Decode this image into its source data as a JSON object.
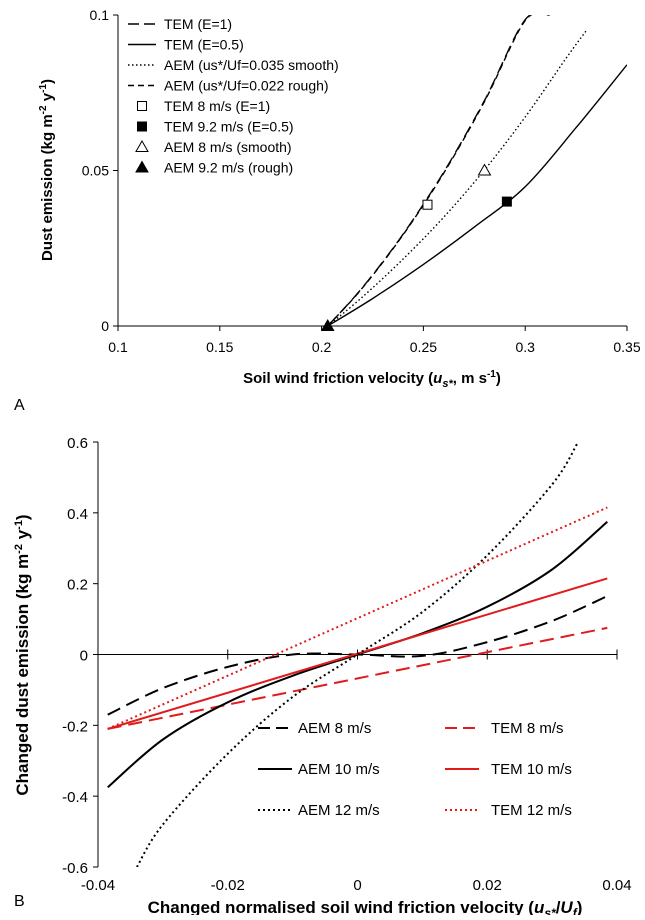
{
  "charts": [
    {
      "panel_label": "A",
      "type": "line",
      "xlabel_prefix": "Soil wind friction velocity (",
      "xlabel_var": "u",
      "xlabel_sub": "s*",
      "xlabel_suffix": ", m s",
      "xlabel_sup": "-1",
      "xlabel_end": ")",
      "ylabel": "Dust emission (kg m-2 y-1)",
      "ylabel_parts": [
        "Dust emission (kg m",
        "-2",
        " y",
        "-1",
        ")"
      ],
      "xlim": [
        0.1,
        0.35
      ],
      "ylim": [
        0,
        0.1
      ],
      "xticks": [
        0.1,
        0.15,
        0.2,
        0.25,
        0.3,
        0.35
      ],
      "xtick_labels": [
        "0.1",
        "0.15",
        "0.2",
        "0.25",
        "0.3",
        "0.35"
      ],
      "yticks": [
        0,
        0.05,
        0.1
      ],
      "ytick_labels": [
        "0",
        "0.05",
        "0.1"
      ],
      "legend_position": "top-left",
      "series": [
        {
          "name": "TEM (E=1)",
          "style": "longdash",
          "color": "#000000",
          "x": [
            0.203,
            0.22,
            0.24,
            0.26,
            0.28,
            0.3,
            0.313
          ],
          "y": [
            0.0,
            0.0123,
            0.0295,
            0.0495,
            0.0725,
            0.0985,
            0.1
          ]
        },
        {
          "name": "TEM (E=0.5)",
          "style": "solid",
          "color": "#000000",
          "x": [
            0.203,
            0.225,
            0.25,
            0.275,
            0.3,
            0.325,
            0.35
          ],
          "y": [
            0.0,
            0.0088,
            0.0198,
            0.0318,
            0.0448,
            0.0638,
            0.084
          ]
        },
        {
          "name": "AEM (us*/Uf=0.035 smooth)",
          "style": "dotted",
          "color": "#000000",
          "x": [
            0.203,
            0.22,
            0.24,
            0.26,
            0.28,
            0.3,
            0.32,
            0.33
          ],
          "y": [
            0.0,
            0.0093,
            0.0215,
            0.035,
            0.0502,
            0.0672,
            0.086,
            0.095
          ]
        },
        {
          "name": "AEM (us*/Uf=0.022 rough)",
          "style": "shortdash",
          "color": "#000000",
          "x": [
            0.203,
            0.22,
            0.24,
            0.26,
            0.28,
            0.3,
            0.312
          ],
          "y": [
            0.0,
            0.0122,
            0.0293,
            0.0492,
            0.0722,
            0.0982,
            0.1
          ]
        }
      ],
      "markers": [
        {
          "name": "TEM 8 m/s (E=1)",
          "symbol": "square-open",
          "x": 0.252,
          "y": 0.039
        },
        {
          "name": "TEM 9.2 m/s (E=0.5)",
          "symbol": "square-filled",
          "x": 0.291,
          "y": 0.04
        },
        {
          "name": "AEM 8 m/s (smooth)",
          "symbol": "triangle-open",
          "x": 0.28,
          "y": 0.05
        },
        {
          "name": "AEM 9.2 m/s (rough)",
          "symbol": "triangle-filled",
          "x": 0.203,
          "y": 0.0
        }
      ]
    },
    {
      "panel_label": "B",
      "type": "line",
      "xlabel_prefix": "Changed normalised soil wind friction velocity (",
      "xlabel_var": "u",
      "xlabel_sub": "s*",
      "xlabel_mid": "/",
      "xlabel_var2": "U",
      "xlabel_sub2": "f",
      "xlabel_end": ")",
      "ylabel": "Changed dust emission (kg m-2 y-1)",
      "ylabel_parts": [
        "Changed dust emission (kg m",
        "-2",
        " y",
        "-1",
        ")"
      ],
      "xlim": [
        -0.04,
        0.04
      ],
      "ylim": [
        -0.6,
        0.6
      ],
      "xticks": [
        -0.04,
        -0.02,
        0,
        0.02,
        0.04
      ],
      "xtick_labels": [
        "-0.04",
        "-0.02",
        "0",
        "0.02",
        "0.04"
      ],
      "yticks": [
        -0.6,
        -0.4,
        -0.2,
        0,
        0.2,
        0.4,
        0.6
      ],
      "ytick_labels": [
        "-0.6",
        "-0.4",
        "-0.2",
        "0",
        "0.2",
        "0.4",
        "0.6"
      ],
      "legend_position": "bottom-right",
      "series": [
        {
          "name": "AEM 8 m/s",
          "style": "longdash",
          "color": "#000000",
          "x": [
            -0.0385,
            -0.03,
            -0.02,
            -0.01,
            0,
            0.01,
            0.02,
            0.03,
            0.0385
          ],
          "y": [
            -0.17,
            -0.095,
            -0.035,
            0.0,
            0.0,
            -0.004,
            0.035,
            0.095,
            0.165
          ]
        },
        {
          "name": "TEM 8 m/s",
          "style": "longdash",
          "color": "#e11b1b",
          "x": [
            -0.0385,
            0.0385
          ],
          "y": [
            -0.21,
            0.075
          ]
        },
        {
          "name": "AEM 10 m/s",
          "style": "solid",
          "color": "#000000",
          "x": [
            -0.0385,
            -0.03,
            -0.02,
            -0.01,
            0,
            0.01,
            0.02,
            0.03,
            0.0385
          ],
          "y": [
            -0.375,
            -0.24,
            -0.135,
            -0.06,
            0.0,
            0.06,
            0.135,
            0.24,
            0.375
          ]
        },
        {
          "name": "TEM 10 m/s",
          "style": "solid",
          "color": "#e11b1b",
          "x": [
            -0.0385,
            0.0385
          ],
          "y": [
            -0.21,
            0.215
          ]
        },
        {
          "name": "AEM 12 m/s",
          "style": "dotted",
          "color": "#000000",
          "x": [
            -0.034,
            -0.03,
            -0.02,
            -0.01,
            0,
            0.01,
            0.02,
            0.03,
            0.034
          ],
          "y": [
            -0.6,
            -0.48,
            -0.28,
            -0.12,
            0.0,
            0.12,
            0.28,
            0.48,
            0.6
          ]
        },
        {
          "name": "TEM 12 m/s",
          "style": "dotted",
          "color": "#e11b1b",
          "x": [
            -0.0385,
            0.0385
          ],
          "y": [
            -0.21,
            0.415
          ]
        }
      ]
    }
  ]
}
